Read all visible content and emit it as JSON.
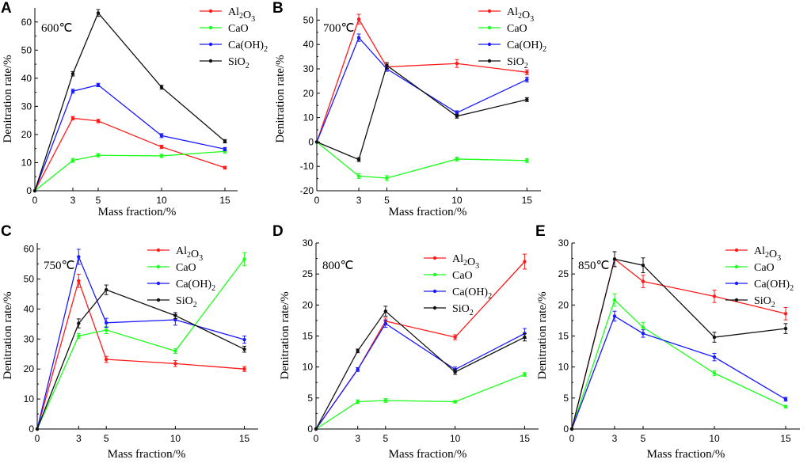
{
  "colors": {
    "Al2O3": "#ff1a1a",
    "CaO": "#1aff1a",
    "CaOH2": "#1a1aff",
    "SiO2": "#111111"
  },
  "chart_data": [
    {
      "panel": "A",
      "type": "line",
      "temperature": "600℃",
      "xlabel": "Mass fraction/%",
      "ylabel": "Denitration rate/%",
      "x": [
        0,
        3,
        5,
        10,
        15
      ],
      "xticks": [
        0,
        3,
        5,
        10,
        15
      ],
      "xlim": [
        0,
        16
      ],
      "ylim": [
        0,
        65
      ],
      "yticks": [
        0,
        10,
        20,
        30,
        40,
        50,
        60
      ],
      "series": [
        {
          "key": "Al2O3",
          "name": "Al2O3",
          "values": [
            0,
            25.8,
            24.8,
            15.6,
            8.2
          ],
          "errors": [
            0,
            0.6,
            0.6,
            0.6,
            0.5
          ]
        },
        {
          "key": "CaO",
          "name": "CaO",
          "values": [
            0,
            10.8,
            12.6,
            12.4,
            14.0
          ],
          "errors": [
            0,
            0.7,
            0.6,
            0.6,
            0.6
          ]
        },
        {
          "key": "CaOH2",
          "name": "Ca(OH)2",
          "values": [
            0,
            35.4,
            37.6,
            19.6,
            14.8
          ],
          "errors": [
            0,
            0.7,
            0.6,
            0.7,
            0.6
          ]
        },
        {
          "key": "SiO2",
          "name": "SiO2",
          "values": [
            0,
            41.6,
            63.2,
            36.8,
            17.6
          ],
          "errors": [
            0,
            0.8,
            1.2,
            0.7,
            0.6
          ]
        }
      ]
    },
    {
      "panel": "B",
      "type": "line",
      "temperature": "700℃",
      "xlabel": "Mass fraction/%",
      "ylabel": "Denitration rate/%",
      "x": [
        0,
        3,
        5,
        10,
        15
      ],
      "xticks": [
        0,
        3,
        5,
        10,
        15
      ],
      "xlim": [
        0,
        16
      ],
      "ylim": [
        -20,
        55
      ],
      "yticks": [
        -20,
        -10,
        0,
        10,
        20,
        30,
        40,
        50
      ],
      "series": [
        {
          "key": "Al2O3",
          "name": "Al2O3",
          "values": [
            0,
            50.4,
            30.8,
            32.2,
            28.6
          ],
          "errors": [
            0,
            2.0,
            1.2,
            1.6,
            1.0
          ]
        },
        {
          "key": "CaO",
          "name": "CaO",
          "values": [
            0,
            -14.0,
            -14.8,
            -7.0,
            -7.6
          ],
          "errors": [
            0,
            1.0,
            1.0,
            0.8,
            0.8
          ]
        },
        {
          "key": "CaOH2",
          "name": "Ca(OH)2",
          "values": [
            0,
            42.8,
            30.0,
            12.0,
            25.6
          ],
          "errors": [
            0,
            1.5,
            1.0,
            0.8,
            1.0
          ]
        },
        {
          "key": "SiO2",
          "name": "SiO2",
          "values": [
            0,
            -7.2,
            31.4,
            10.6,
            17.4
          ],
          "errors": [
            0,
            0.8,
            1.2,
            0.8,
            0.8
          ]
        }
      ]
    },
    {
      "panel": "C",
      "type": "line",
      "temperature": "750℃",
      "xlabel": "Mass fraction/%",
      "ylabel": "Denitration rate/%",
      "x": [
        0,
        3,
        5,
        10,
        15
      ],
      "xticks": [
        0,
        3,
        5,
        10,
        15
      ],
      "xlim": [
        0,
        16
      ],
      "ylim": [
        0,
        62
      ],
      "yticks": [
        0,
        10,
        20,
        30,
        40,
        50,
        60
      ],
      "series": [
        {
          "key": "Al2O3",
          "name": "Al2O3",
          "values": [
            0,
            49.4,
            23.2,
            21.8,
            20.0
          ],
          "errors": [
            0,
            2.2,
            1.0,
            1.0,
            0.8
          ]
        },
        {
          "key": "CaO",
          "name": "CaO",
          "values": [
            0,
            31.0,
            33.0,
            26.0,
            56.6
          ],
          "errors": [
            0,
            0.8,
            1.2,
            0.8,
            2.2
          ]
        },
        {
          "key": "CaOH2",
          "name": "Ca(OH)2",
          "values": [
            0,
            57.4,
            35.4,
            36.4,
            29.8
          ],
          "errors": [
            0,
            2.5,
            1.5,
            1.8,
            1.2
          ]
        },
        {
          "key": "SiO2",
          "name": "SiO2",
          "values": [
            0,
            35.2,
            46.4,
            37.8,
            26.6
          ],
          "errors": [
            0,
            1.5,
            1.6,
            1.0,
            1.0
          ]
        }
      ]
    },
    {
      "panel": "D",
      "type": "line",
      "temperature": "800℃",
      "xlabel": "Mass fraction/%",
      "ylabel": "Denitration rate/%",
      "x": [
        0,
        3,
        5,
        10,
        15
      ],
      "xticks": [
        0,
        3,
        5,
        10,
        15
      ],
      "xlim": [
        0,
        16
      ],
      "ylim": [
        0,
        30
      ],
      "yticks": [
        0,
        5,
        10,
        15,
        20,
        25,
        30
      ],
      "series": [
        {
          "key": "Al2O3",
          "name": "Al2O3",
          "values": [
            0,
            9.6,
            17.4,
            14.8,
            27.0
          ],
          "errors": [
            0,
            0.3,
            0.5,
            0.4,
            1.2
          ]
        },
        {
          "key": "CaO",
          "name": "CaO",
          "values": [
            0,
            4.4,
            4.6,
            4.4,
            8.8
          ],
          "errors": [
            0,
            0.3,
            0.3,
            0.2,
            0.3
          ]
        },
        {
          "key": "CaOH2",
          "name": "Ca(OH)2",
          "values": [
            0,
            9.6,
            17.0,
            9.6,
            15.4
          ],
          "errors": [
            0,
            0.3,
            0.6,
            0.4,
            0.8
          ]
        },
        {
          "key": "SiO2",
          "name": "SiO2",
          "values": [
            0,
            12.6,
            19.0,
            9.2,
            14.8
          ],
          "errors": [
            0,
            0.3,
            0.8,
            0.4,
            0.6
          ]
        }
      ]
    },
    {
      "panel": "E",
      "type": "line",
      "temperature": "850℃",
      "xlabel": "Mass fraction/%",
      "ylabel": "Denitration rate/%",
      "x": [
        0,
        3,
        5,
        10,
        15
      ],
      "xticks": [
        0,
        3,
        5,
        10,
        15
      ],
      "xlim": [
        0,
        16
      ],
      "ylim": [
        0,
        30
      ],
      "yticks": [
        0,
        5,
        10,
        15,
        20,
        25,
        30
      ],
      "series": [
        {
          "key": "Al2O3",
          "name": "Al2O3",
          "values": [
            0,
            27.4,
            23.8,
            21.4,
            18.6
          ],
          "errors": [
            0,
            1.2,
            1.0,
            1.0,
            1.0
          ]
        },
        {
          "key": "CaO",
          "name": "CaO",
          "values": [
            0,
            20.8,
            16.4,
            9.0,
            3.6
          ],
          "errors": [
            0,
            1.0,
            0.8,
            0.4,
            0.2
          ]
        },
        {
          "key": "CaOH2",
          "name": "Ca(OH)2",
          "values": [
            0,
            18.2,
            15.4,
            11.6,
            4.8
          ],
          "errors": [
            0,
            0.8,
            0.6,
            0.6,
            0.3
          ]
        },
        {
          "key": "SiO2",
          "name": "SiO2",
          "values": [
            0,
            27.4,
            26.4,
            14.8,
            16.2
          ],
          "errors": [
            0,
            1.2,
            1.2,
            0.8,
            0.8
          ]
        }
      ]
    }
  ]
}
